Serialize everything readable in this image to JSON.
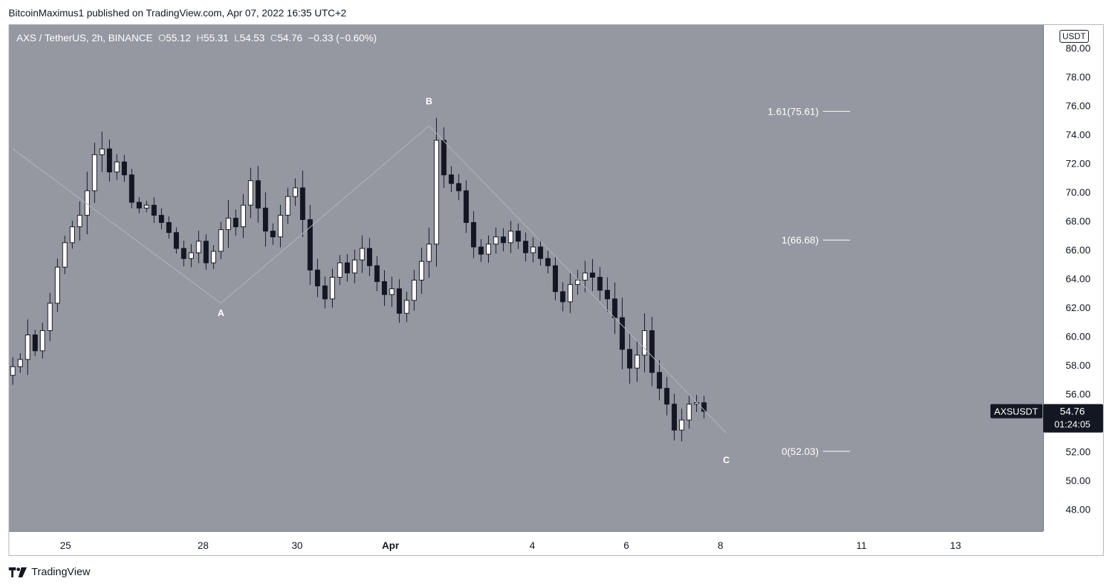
{
  "header": {
    "publisher": "BitcoinMaximus1 published on TradingView.com, Apr 07, 2022 16:35 UTC+2"
  },
  "legend": {
    "symbol": "AXS / TetherUS, 2h, BINANCE",
    "open_label": "O",
    "open": "55.12",
    "high_label": "H",
    "high": "55.31",
    "low_label": "L",
    "low": "54.53",
    "close_label": "C",
    "close": "54.76",
    "change": "−0.33 (−0.60%)"
  },
  "price_axis": {
    "currency": "USDT",
    "ticker_label": "AXSUSDT",
    "last_price": "54.76",
    "countdown": "01:24:05"
  },
  "footer": {
    "brand": "TradingView"
  },
  "colors": {
    "pane_bg": "#9598a1",
    "bull": "#ffffff",
    "bear": "#131722",
    "wave_line": "#b2b5be",
    "fib_line": "#ffffff"
  },
  "chart_data": {
    "type": "candlestick",
    "ylim": [
      46.5,
      81.6
    ],
    "y_ticks": [
      "80.00",
      "78.00",
      "76.00",
      "74.00",
      "72.00",
      "70.00",
      "68.00",
      "66.00",
      "64.00",
      "62.00",
      "60.00",
      "58.00",
      "56.00",
      "54.00",
      "52.00",
      "50.00",
      "48.00"
    ],
    "x_ticks": [
      "25",
      "28",
      "30",
      "Apr",
      "4",
      "6",
      "8",
      "11",
      "13"
    ],
    "fib_levels": [
      {
        "label": "1.61(75.61)",
        "value": 75.61
      },
      {
        "label": "1(66.68)",
        "value": 66.68
      },
      {
        "label": "0(52.03)",
        "value": 52.03
      }
    ],
    "wave_labels": [
      {
        "label": "A",
        "date_index": 14,
        "price": 62.4
      },
      {
        "label": "B",
        "date_index": 28,
        "price": 75.5
      },
      {
        "label": "C",
        "date_index": 48,
        "price": 52.2
      }
    ],
    "wave_path": [
      {
        "i": 0,
        "price": 73.0
      },
      {
        "i": 14,
        "price": 62.3
      },
      {
        "i": 28,
        "price": 74.6
      },
      {
        "i": 48,
        "price": 53.3
      }
    ],
    "close_series": [
      57.9,
      58.4,
      60.1,
      59.0,
      60.4,
      62.3,
      64.8,
      66.5,
      67.6,
      68.4,
      70.1,
      72.6,
      73.0,
      71.4,
      72.1,
      71.2,
      69.3,
      68.9,
      69.1,
      68.4,
      67.9,
      67.2,
      66.1,
      65.4,
      65.8,
      66.6,
      65.1,
      65.9,
      67.4,
      68.2,
      67.6,
      69.1,
      70.8,
      68.9,
      67.3,
      66.9,
      68.4,
      69.7,
      70.3,
      68.1,
      64.6,
      63.5,
      62.6,
      64.1,
      65.1,
      64.4,
      65.3,
      66.1,
      64.9,
      63.8,
      62.9,
      63.3,
      61.6,
      62.5,
      63.9,
      65.2,
      66.4,
      73.6,
      71.2,
      70.6,
      70.1,
      67.9,
      66.2,
      65.7,
      66.4,
      66.9,
      66.5,
      67.3,
      66.6,
      65.8,
      66.2,
      65.4,
      64.9,
      63.1,
      62.4,
      63.6,
      63.9,
      64.4,
      64.1,
      63.2,
      62.6,
      61.3,
      59.1,
      57.8,
      58.7,
      60.4,
      57.5,
      56.4,
      55.3,
      53.5,
      54.2,
      55.3,
      55.4,
      54.8
    ],
    "x_range_days": {
      "start": "Mar 24",
      "end": "Mar 15 + 21"
    }
  }
}
